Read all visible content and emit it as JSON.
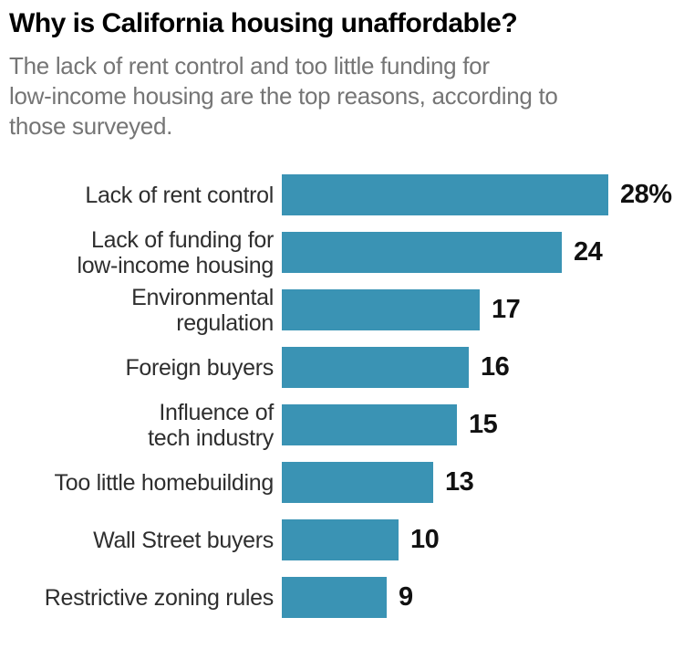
{
  "header": {
    "title": "Why is California housing unaffordable?",
    "subtitle": "The lack of rent control and too little funding for\nlow-income housing are the top reasons, according to\nthose surveyed."
  },
  "chart_data": {
    "type": "bar",
    "orientation": "horizontal",
    "title": "Why is California housing unaffordable?",
    "categories": [
      "Lack of rent control",
      "Lack of funding for\nlow-income housing",
      "Environmental\nregulation",
      "Foreign buyers",
      "Influence of\ntech industry",
      "Too little homebuilding",
      "Wall Street buyers",
      "Restrictive zoning rules"
    ],
    "values": [
      28,
      24,
      17,
      16,
      15,
      13,
      10,
      9
    ],
    "value_labels": [
      "28%",
      "24",
      "17",
      "16",
      "15",
      "13",
      "10",
      "9"
    ],
    "unit": "percent of those surveyed",
    "xlim": [
      0,
      28
    ],
    "grid": false,
    "legend": false,
    "bar_color": "#3a93b4"
  },
  "colors": {
    "bar": "#3a93b4",
    "title": "#000000",
    "subtitle": "#757575",
    "category_label": "#2e2e2e",
    "value_label": "#111111",
    "background": "#ffffff"
  }
}
